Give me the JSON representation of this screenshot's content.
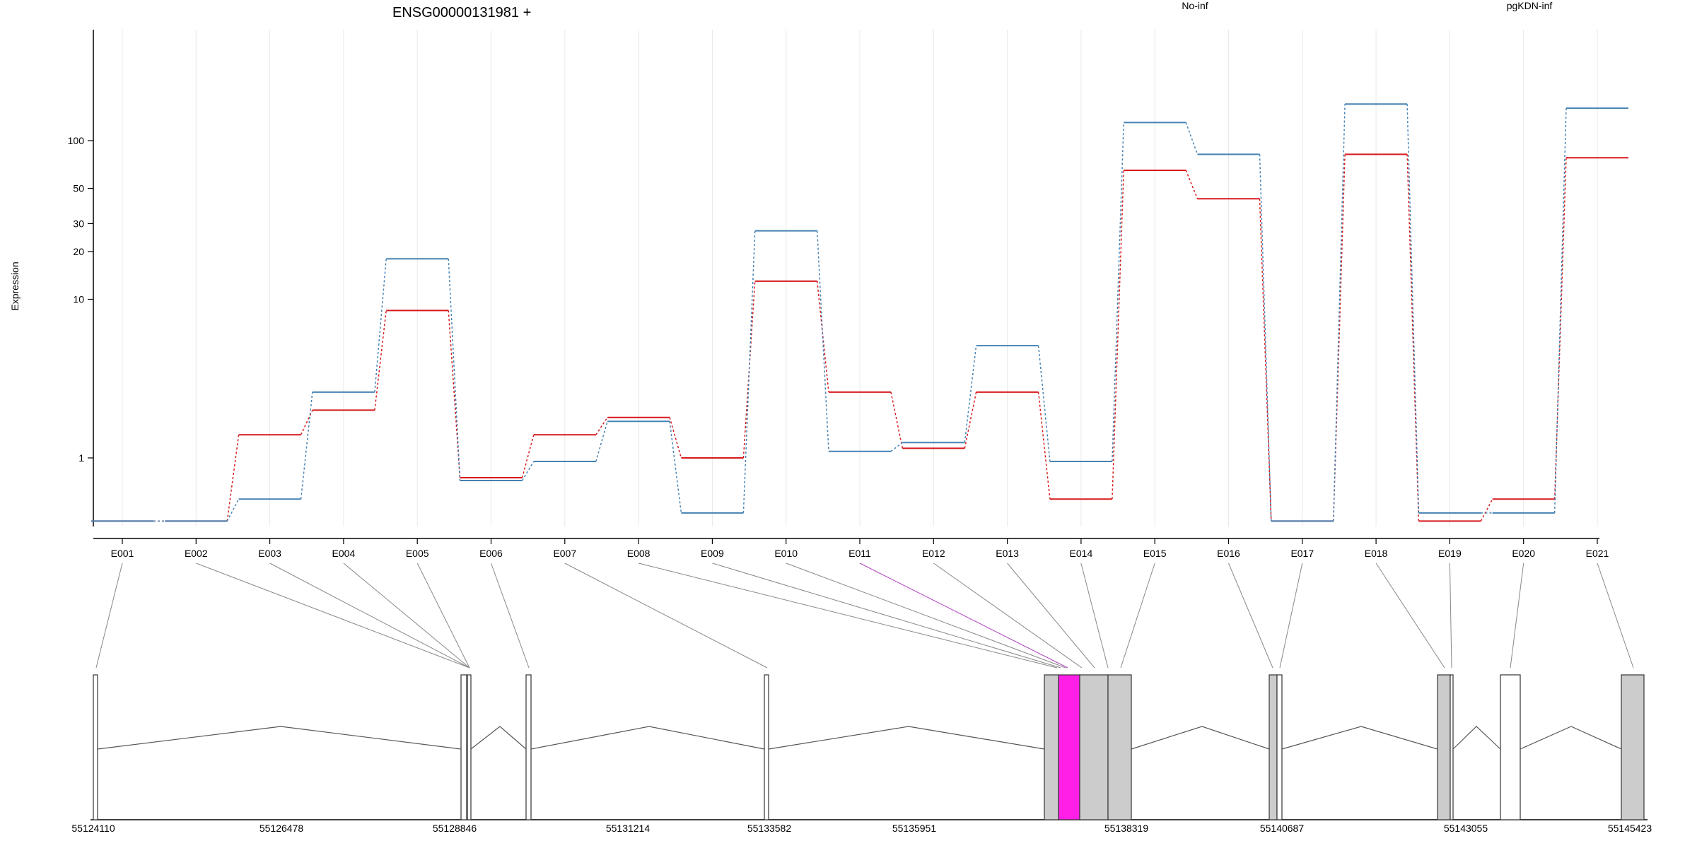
{
  "chart_data": {
    "type": "line",
    "title": "ENSG00000131981 +",
    "ylabel": "Expression",
    "y_scale": "log",
    "y_ticks": [
      "1",
      "10",
      "20",
      "30",
      "50",
      "100"
    ],
    "categories": [
      "E001",
      "E002",
      "E003",
      "E004",
      "E005",
      "E006",
      "E007",
      "E008",
      "E009",
      "E010",
      "E011",
      "E012",
      "E013",
      "E014",
      "E015",
      "E016",
      "E017",
      "E018",
      "E019",
      "E020",
      "E021"
    ],
    "series": [
      {
        "name": "No-inf",
        "color": "#d7191c",
        "values": [
          0.4,
          0.4,
          1.4,
          2.0,
          8.5,
          0.75,
          1.4,
          1.8,
          1.0,
          13.0,
          2.6,
          1.15,
          2.6,
          0.55,
          65.0,
          43.0,
          0.4,
          82.0,
          0.4,
          0.55,
          78.0
        ]
      },
      {
        "name": "pgKDN-inf",
        "color": "#4682b4",
        "values": [
          0.4,
          0.4,
          0.55,
          2.6,
          18.0,
          0.72,
          0.95,
          1.7,
          0.45,
          27.0,
          1.1,
          1.25,
          5.1,
          0.95,
          130.0,
          82.0,
          0.4,
          170.0,
          0.45,
          0.45,
          160.0
        ]
      }
    ],
    "legend_position": "top",
    "gene_model": {
      "genomic_ticks": [
        "55124110",
        "55126478",
        "55128846",
        "55131214",
        "55133582",
        "55135951",
        "55138319",
        "55140687",
        "55143055",
        "55145423"
      ],
      "highlighted_exon": "E011",
      "highlight_color": "#ff1fe6",
      "exon_fill": "#cccccc"
    }
  }
}
